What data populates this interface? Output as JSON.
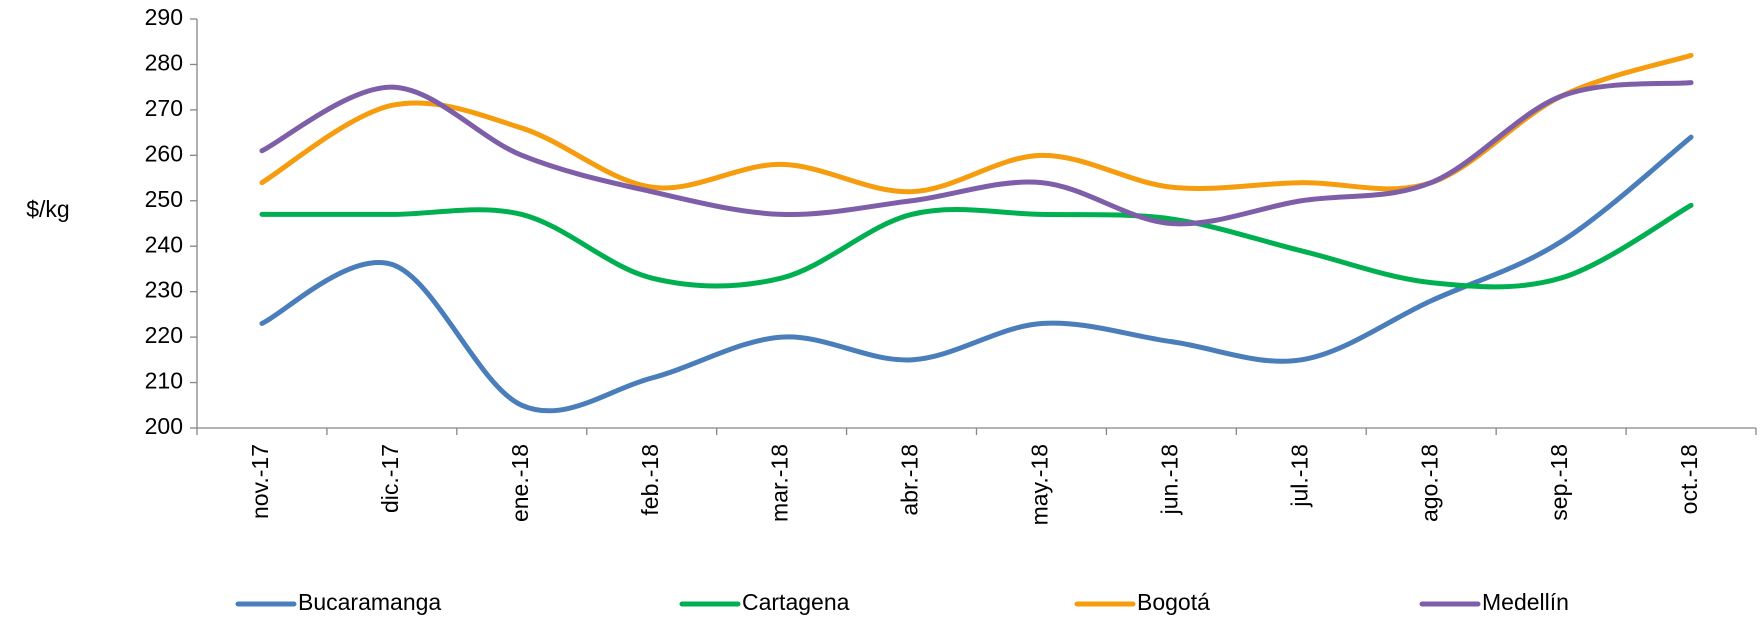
{
  "chart_data": {
    "type": "line",
    "y_label": "$/kg",
    "categories": [
      "nov.-17",
      "dic.-17",
      "ene.-18",
      "feb.-18",
      "mar.-18",
      "abr.-18",
      "may.-18",
      "jun.-18",
      "jul.-18",
      "ago.-18",
      "sep.-18",
      "oct.-18"
    ],
    "series": [
      {
        "name": "Bucaramanga",
        "color": "#4a7ebb",
        "values": [
          223,
          236,
          205,
          211,
          220,
          215,
          223,
          219,
          215,
          228,
          241,
          264
        ]
      },
      {
        "name": "Cartagena",
        "color": "#00b050",
        "values": [
          247,
          247,
          247,
          233,
          233,
          247,
          247,
          246,
          239,
          232,
          233,
          249
        ]
      },
      {
        "name": "Bogotá",
        "color": "#f59d0e",
        "values": [
          254,
          271,
          266,
          253,
          258,
          252,
          260,
          253,
          254,
          254,
          273,
          282
        ]
      },
      {
        "name": "Medellín",
        "color": "#7e5ea8",
        "values": [
          261,
          275,
          260,
          252,
          247,
          250,
          254,
          245,
          250,
          254,
          273,
          276
        ]
      }
    ],
    "ylim": [
      200,
      290
    ],
    "yticks": [
      200,
      210,
      220,
      230,
      240,
      250,
      260,
      270,
      280,
      290
    ],
    "smooth": true,
    "legend": "bottom"
  }
}
